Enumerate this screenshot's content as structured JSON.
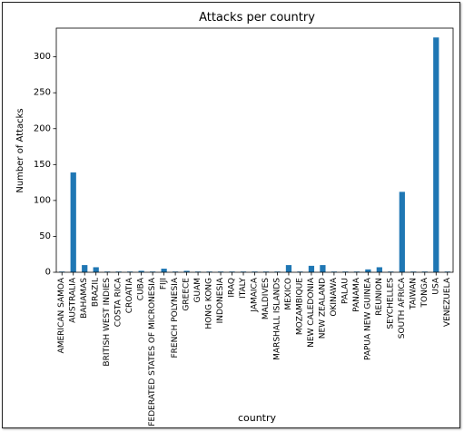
{
  "chart_data": {
    "type": "bar",
    "title": "Attacks per country",
    "xlabel": "country",
    "ylabel": "Number of Attacks",
    "ylim": [
      0,
      340
    ],
    "yticks": [
      0,
      50,
      100,
      150,
      200,
      250,
      300
    ],
    "grid": false,
    "bar_color": "#1f77b4",
    "categories": [
      "AMERICAN SAMOA",
      "AUSTRALIA",
      "BAHAMAS",
      "BRAZIL",
      "BRITISH WEST INDIES",
      "COSTA RICA",
      "CROATIA",
      "CUBA",
      "FEDERATED STATES OF MICRONESIA",
      "FIJI",
      "FRENCH POLYNESIA",
      "GREECE",
      "GUAM",
      "HONG KONG",
      "INDONESIA",
      "IRAQ",
      "ITALY",
      "JAMAICA",
      "MALDIVES",
      "MARSHALL ISLANDS",
      "MEXICO",
      "MOZAMBIQUE",
      "NEW CALEDONIA",
      "NEW ZEALAND",
      "OKINAWA",
      "PALAU",
      "PANAMA",
      "PAPUA NEW GUINEA",
      "REUNION",
      "SEYCHELLES",
      "SOUTH AFRICA",
      "TAIWAN",
      "TONGA",
      "USA",
      "VENEZUELA"
    ],
    "values": [
      1,
      139,
      10,
      7,
      1,
      1,
      1,
      2,
      1,
      5,
      1,
      2,
      1,
      1,
      1,
      1,
      1,
      1,
      1,
      1,
      10,
      1,
      9,
      10,
      1,
      1,
      1,
      4,
      7,
      1,
      112,
      1,
      1,
      327,
      1
    ]
  }
}
